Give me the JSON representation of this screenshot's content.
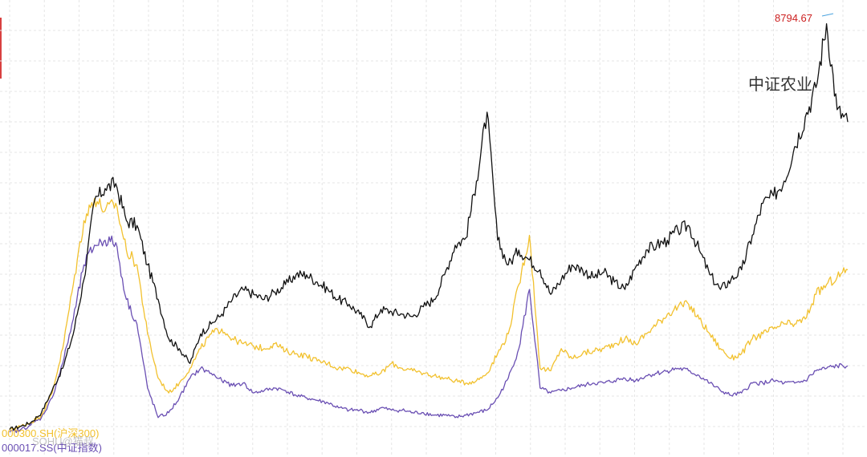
{
  "chart_data": {
    "type": "line",
    "title": "",
    "xlabel": "",
    "ylabel": "",
    "grid": true,
    "annotations": {
      "max_value": "8794.67",
      "series_title": "中证农业"
    },
    "legend": [
      {
        "text": "000300.SH(沪深300)",
        "color": "#f2c12e"
      },
      {
        "text": "000017.SS(中证指数)",
        "color": "#6a4fb3"
      }
    ],
    "watermark": "SOHU@猫叔",
    "series": [
      {
        "name": "中证农业",
        "color": "#111111",
        "values": [
          560,
          620,
          700,
          900,
          1350,
          1800,
          2500,
          3600,
          5200,
          5450,
          5550,
          4800,
          4700,
          3900,
          3200,
          2400,
          2200,
          1900,
          2500,
          2700,
          2900,
          3200,
          3400,
          3300,
          3200,
          3350,
          3500,
          3700,
          3700,
          3550,
          3400,
          3200,
          3100,
          2900,
          2650,
          3000,
          2950,
          2900,
          2850,
          3050,
          3200,
          3700,
          4300,
          4450,
          5600,
          7000,
          4400,
          3900,
          4200,
          4000,
          3800,
          3300,
          3600,
          3900,
          3800,
          3650,
          3750,
          3550,
          3400,
          3850,
          4200,
          4300,
          4400,
          4600,
          4700,
          4200,
          3700,
          3400,
          3600,
          3800,
          4500,
          5150,
          5300,
          5600,
          6300,
          6900,
          7500,
          8794.67,
          7050,
          6800
        ]
      },
      {
        "name": "000300.SH(沪深300)",
        "color": "#f2c12e",
        "values": [
          560,
          620,
          700,
          850,
          1300,
          2200,
          3500,
          4800,
          5250,
          5000,
          5150,
          4200,
          3900,
          2500,
          1600,
          1300,
          1500,
          1800,
          2200,
          2500,
          2600,
          2400,
          2300,
          2250,
          2200,
          2300,
          2150,
          2100,
          2050,
          1950,
          1900,
          1800,
          1800,
          1700,
          1650,
          1700,
          1900,
          1800,
          1750,
          1700,
          1650,
          1600,
          1550,
          1500,
          1550,
          1700,
          2100,
          2500,
          3500,
          4500,
          1800,
          1750,
          2200,
          2000,
          2100,
          2150,
          2200,
          2300,
          2400,
          2300,
          2500,
          2700,
          2900,
          3050,
          3100,
          2800,
          2500,
          2200,
          2000,
          2100,
          2400,
          2500,
          2600,
          2700,
          2700,
          2800,
          3300,
          3500,
          3650,
          3800
        ]
      },
      {
        "name": "000017.SS(中证指数)",
        "color": "#6a4fb3",
        "values": [
          500,
          550,
          650,
          800,
          1200,
          1900,
          2800,
          3900,
          4300,
          4400,
          4350,
          3200,
          2700,
          1400,
          800,
          900,
          1200,
          1600,
          1800,
          1700,
          1550,
          1450,
          1500,
          1300,
          1350,
          1400,
          1350,
          1250,
          1200,
          1150,
          1100,
          1000,
          950,
          950,
          900,
          1000,
          950,
          950,
          900,
          900,
          850,
          850,
          800,
          850,
          900,
          950,
          1200,
          1600,
          2200,
          3400,
          1400,
          1300,
          1350,
          1400,
          1450,
          1500,
          1500,
          1550,
          1600,
          1550,
          1650,
          1700,
          1750,
          1800,
          1750,
          1650,
          1500,
          1350,
          1250,
          1300,
          1500,
          1500,
          1550,
          1500,
          1500,
          1550,
          1750,
          1800,
          1850,
          1850
        ]
      }
    ],
    "ylim": [
      0,
      9000
    ]
  }
}
